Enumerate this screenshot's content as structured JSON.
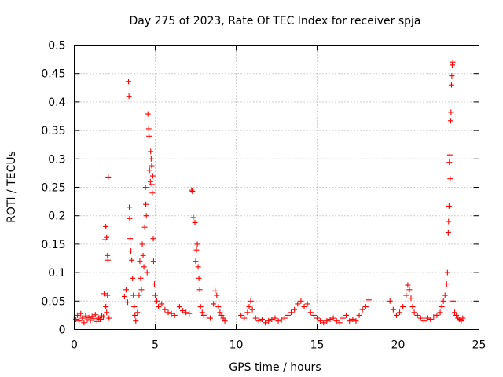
{
  "chart_data": {
    "type": "scatter",
    "title": "Day 275 of 2023, Rate Of TEC Index for receiver spja",
    "xlabel": "GPS time / hours",
    "ylabel": "ROTI / TECUs",
    "xlim": [
      0,
      25
    ],
    "ylim": [
      0,
      0.5
    ],
    "xticks": [
      "0",
      "5",
      "10",
      "15",
      "20",
      "25"
    ],
    "yticks": [
      "0",
      "0.05",
      "0.1",
      "0.15",
      "0.2",
      "0.25",
      "0.3",
      "0.35",
      "0.4",
      "0.45",
      "0.5"
    ],
    "grid": true,
    "marker": "+",
    "color": "#ff0000",
    "series": [
      {
        "points": [
          [
            0.0,
            0.022
          ],
          [
            0.1,
            0.018
          ],
          [
            0.2,
            0.025
          ],
          [
            0.3,
            0.015
          ],
          [
            0.4,
            0.028
          ],
          [
            0.5,
            0.02
          ],
          [
            0.6,
            0.012
          ],
          [
            0.7,
            0.024
          ],
          [
            0.8,
            0.017
          ],
          [
            0.9,
            0.021
          ],
          [
            1.0,
            0.016
          ],
          [
            1.1,
            0.023
          ],
          [
            1.2,
            0.019
          ],
          [
            1.3,
            0.026
          ],
          [
            1.4,
            0.014
          ],
          [
            1.5,
            0.02
          ],
          [
            1.6,
            0.018
          ],
          [
            1.7,
            0.024
          ],
          [
            1.8,
            0.022
          ],
          [
            1.85,
            0.063
          ],
          [
            1.9,
            0.158
          ],
          [
            1.95,
            0.181
          ],
          [
            2.0,
            0.162
          ],
          [
            2.05,
            0.13
          ],
          [
            2.08,
            0.122
          ],
          [
            2.1,
            0.268
          ],
          [
            2.05,
            0.06
          ],
          [
            1.95,
            0.04
          ],
          [
            2.0,
            0.03
          ],
          [
            2.15,
            0.02
          ],
          [
            3.1,
            0.058
          ],
          [
            3.2,
            0.07
          ],
          [
            3.3,
            0.048
          ],
          [
            3.35,
            0.436
          ],
          [
            3.38,
            0.41
          ],
          [
            3.4,
            0.215
          ],
          [
            3.42,
            0.195
          ],
          [
            3.45,
            0.16
          ],
          [
            3.5,
            0.138
          ],
          [
            3.55,
            0.122
          ],
          [
            3.6,
            0.09
          ],
          [
            3.65,
            0.06
          ],
          [
            3.7,
            0.04
          ],
          [
            3.75,
            0.025
          ],
          [
            3.8,
            0.015
          ],
          [
            3.9,
            0.03
          ],
          [
            4.0,
            0.06
          ],
          [
            4.05,
            0.12
          ],
          [
            4.1,
            0.09
          ],
          [
            4.15,
            0.07
          ],
          [
            4.2,
            0.15
          ],
          [
            4.25,
            0.13
          ],
          [
            4.3,
            0.11
          ],
          [
            4.35,
            0.18
          ],
          [
            4.4,
            0.25
          ],
          [
            4.42,
            0.22
          ],
          [
            4.45,
            0.2
          ],
          [
            4.5,
            0.1
          ],
          [
            4.55,
            0.379
          ],
          [
            4.6,
            0.353
          ],
          [
            4.62,
            0.34
          ],
          [
            4.65,
            0.28
          ],
          [
            4.7,
            0.26
          ],
          [
            4.72,
            0.313
          ],
          [
            4.75,
            0.3
          ],
          [
            4.78,
            0.288
          ],
          [
            4.8,
            0.255
          ],
          [
            4.82,
            0.24
          ],
          [
            4.85,
            0.27
          ],
          [
            4.88,
            0.16
          ],
          [
            4.9,
            0.12
          ],
          [
            4.95,
            0.08
          ],
          [
            5.0,
            0.06
          ],
          [
            5.1,
            0.05
          ],
          [
            5.2,
            0.04
          ],
          [
            5.4,
            0.045
          ],
          [
            5.6,
            0.035
          ],
          [
            5.8,
            0.03
          ],
          [
            6.0,
            0.028
          ],
          [
            6.2,
            0.025
          ],
          [
            6.5,
            0.04
          ],
          [
            6.7,
            0.033
          ],
          [
            6.9,
            0.03
          ],
          [
            7.1,
            0.028
          ],
          [
            7.25,
            0.245
          ],
          [
            7.3,
            0.243
          ],
          [
            7.35,
            0.197
          ],
          [
            7.45,
            0.188
          ],
          [
            7.5,
            0.12
          ],
          [
            7.55,
            0.14
          ],
          [
            7.6,
            0.15
          ],
          [
            7.65,
            0.11
          ],
          [
            7.7,
            0.09
          ],
          [
            7.75,
            0.07
          ],
          [
            7.8,
            0.04
          ],
          [
            7.9,
            0.03
          ],
          [
            8.0,
            0.025
          ],
          [
            8.2,
            0.022
          ],
          [
            8.4,
            0.02
          ],
          [
            8.6,
            0.045
          ],
          [
            8.7,
            0.068
          ],
          [
            8.8,
            0.06
          ],
          [
            8.9,
            0.04
          ],
          [
            9.0,
            0.03
          ],
          [
            9.1,
            0.025
          ],
          [
            9.2,
            0.02
          ],
          [
            9.3,
            0.015
          ],
          [
            10.3,
            0.025
          ],
          [
            10.5,
            0.02
          ],
          [
            10.7,
            0.03
          ],
          [
            10.8,
            0.04
          ],
          [
            10.9,
            0.05
          ],
          [
            11.0,
            0.035
          ],
          [
            11.2,
            0.02
          ],
          [
            11.4,
            0.015
          ],
          [
            11.6,
            0.018
          ],
          [
            11.8,
            0.012
          ],
          [
            12.0,
            0.015
          ],
          [
            12.2,
            0.018
          ],
          [
            12.4,
            0.02
          ],
          [
            12.6,
            0.015
          ],
          [
            12.8,
            0.017
          ],
          [
            13.0,
            0.02
          ],
          [
            13.2,
            0.025
          ],
          [
            13.4,
            0.03
          ],
          [
            13.6,
            0.035
          ],
          [
            13.8,
            0.045
          ],
          [
            14.0,
            0.05
          ],
          [
            14.2,
            0.04
          ],
          [
            14.4,
            0.045
          ],
          [
            14.6,
            0.03
          ],
          [
            14.8,
            0.025
          ],
          [
            15.0,
            0.02
          ],
          [
            15.2,
            0.015
          ],
          [
            15.4,
            0.012
          ],
          [
            15.6,
            0.015
          ],
          [
            15.8,
            0.018
          ],
          [
            16.0,
            0.02
          ],
          [
            16.2,
            0.015
          ],
          [
            16.4,
            0.012
          ],
          [
            16.6,
            0.02
          ],
          [
            16.8,
            0.025
          ],
          [
            17.0,
            0.015
          ],
          [
            17.2,
            0.018
          ],
          [
            17.4,
            0.015
          ],
          [
            17.6,
            0.025
          ],
          [
            17.8,
            0.035
          ],
          [
            18.0,
            0.04
          ],
          [
            18.2,
            0.052
          ],
          [
            19.5,
            0.05
          ],
          [
            19.7,
            0.035
          ],
          [
            19.9,
            0.025
          ],
          [
            20.1,
            0.03
          ],
          [
            20.3,
            0.04
          ],
          [
            20.5,
            0.06
          ],
          [
            20.6,
            0.078
          ],
          [
            20.7,
            0.07
          ],
          [
            20.8,
            0.055
          ],
          [
            20.9,
            0.04
          ],
          [
            21.0,
            0.03
          ],
          [
            21.2,
            0.025
          ],
          [
            21.4,
            0.02
          ],
          [
            21.6,
            0.015
          ],
          [
            21.8,
            0.02
          ],
          [
            22.0,
            0.018
          ],
          [
            22.2,
            0.022
          ],
          [
            22.4,
            0.025
          ],
          [
            22.6,
            0.03
          ],
          [
            22.7,
            0.04
          ],
          [
            22.8,
            0.05
          ],
          [
            22.9,
            0.06
          ],
          [
            23.0,
            0.08
          ],
          [
            23.05,
            0.1
          ],
          [
            23.1,
            0.17
          ],
          [
            23.12,
            0.19
          ],
          [
            23.15,
            0.217
          ],
          [
            23.17,
            0.294
          ],
          [
            23.2,
            0.307
          ],
          [
            23.22,
            0.265
          ],
          [
            23.25,
            0.367
          ],
          [
            23.27,
            0.382
          ],
          [
            23.3,
            0.43
          ],
          [
            23.32,
            0.446
          ],
          [
            23.35,
            0.465
          ],
          [
            23.38,
            0.47
          ],
          [
            23.4,
            0.05
          ],
          [
            23.5,
            0.03
          ],
          [
            23.6,
            0.025
          ],
          [
            23.7,
            0.02
          ],
          [
            23.8,
            0.018
          ],
          [
            23.9,
            0.015
          ],
          [
            24.0,
            0.02
          ]
        ]
      }
    ]
  }
}
